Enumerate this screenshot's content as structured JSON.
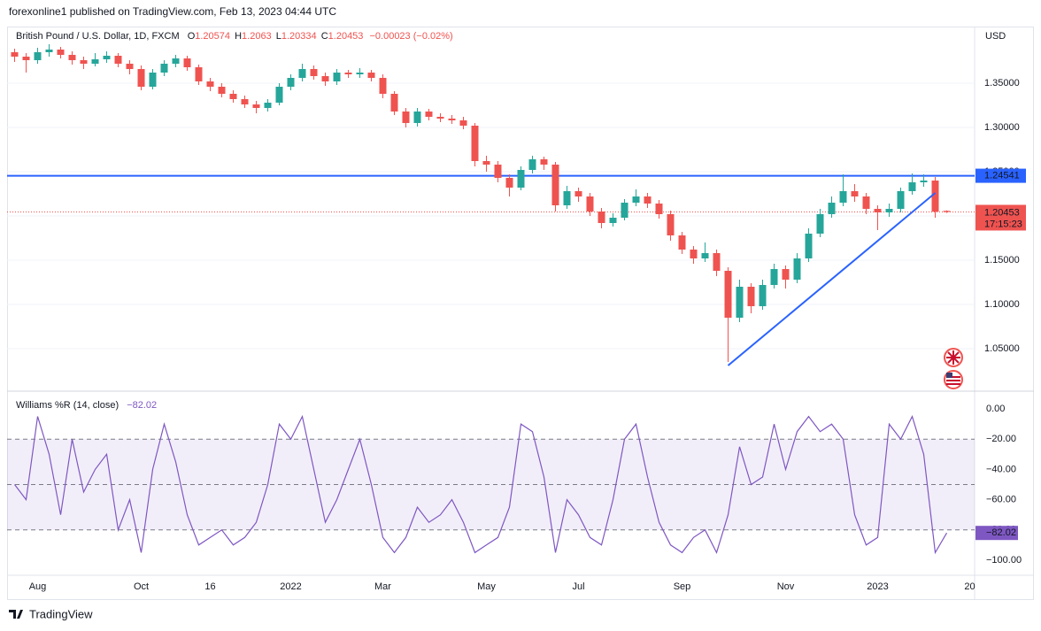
{
  "header": {
    "text": "forexonline1 published on TradingView.com, Feb 13, 2023 04:44 UTC"
  },
  "chart_data": [
    {
      "type": "candlestick",
      "title": "British Pound / U.S. Dollar, 1D, FXCM",
      "ohlc_labels": [
        "O",
        "H",
        "L",
        "C"
      ],
      "change": "−0.00023 (−0.02%)",
      "currency": "USD",
      "countdown": "17:15:23",
      "categories": [
        null,
        null,
        "Aug",
        null,
        null,
        null,
        null,
        null,
        null,
        null,
        null,
        "Oct",
        null,
        null,
        null,
        null,
        null,
        "16",
        null,
        null,
        null,
        null,
        null,
        null,
        "2022",
        null,
        null,
        null,
        null,
        null,
        null,
        null,
        "Mar",
        null,
        null,
        null,
        null,
        null,
        null,
        null,
        null,
        "May",
        null,
        null,
        null,
        null,
        null,
        null,
        null,
        "Jul",
        null,
        null,
        null,
        null,
        null,
        null,
        null,
        null,
        "Sep",
        null,
        null,
        null,
        null,
        null,
        null,
        null,
        null,
        "Nov",
        null,
        null,
        null,
        null,
        null,
        null,
        null,
        "2023",
        null,
        null,
        null,
        null,
        null,
        null,
        null,
        "20",
        null
      ],
      "open": [
        1.385,
        1.38,
        1.376,
        1.385,
        1.388,
        1.382,
        1.376,
        1.372,
        1.377,
        1.381,
        1.372,
        1.366,
        1.346,
        1.362,
        1.372,
        1.378,
        1.368,
        1.352,
        1.346,
        1.338,
        1.332,
        1.326,
        1.322,
        1.328,
        1.346,
        1.356,
        1.366,
        1.358,
        1.352,
        1.362,
        1.36,
        1.362,
        1.356,
        1.338,
        1.318,
        1.305,
        1.318,
        1.312,
        1.31,
        1.308,
        1.302,
        1.262,
        1.258,
        1.243,
        1.232,
        1.252,
        1.264,
        1.258,
        1.212,
        1.228,
        1.222,
        1.205,
        1.192,
        1.198,
        1.215,
        1.222,
        1.214,
        1.202,
        1.178,
        1.162,
        1.152,
        1.158,
        1.138,
        1.085,
        1.12,
        1.098,
        1.122,
        1.14,
        1.128,
        1.152,
        1.18,
        1.202,
        1.215,
        1.228,
        1.222,
        1.208,
        1.204,
        1.208,
        1.228,
        1.238,
        1.24,
        1.20574,
        null,
        null,
        null
      ],
      "high": [
        1.389,
        1.384,
        1.39,
        1.394,
        1.391,
        1.386,
        1.38,
        1.384,
        1.386,
        1.384,
        1.376,
        1.37,
        1.366,
        1.376,
        1.382,
        1.381,
        1.371,
        1.356,
        1.35,
        1.342,
        1.336,
        1.33,
        1.332,
        1.35,
        1.36,
        1.372,
        1.37,
        1.362,
        1.366,
        1.365,
        1.367,
        1.365,
        1.36,
        1.341,
        1.322,
        1.322,
        1.321,
        1.316,
        1.314,
        1.312,
        1.305,
        1.268,
        1.262,
        1.247,
        1.256,
        1.268,
        1.267,
        1.261,
        1.234,
        1.232,
        1.226,
        1.209,
        1.203,
        1.219,
        1.23,
        1.226,
        1.218,
        1.206,
        1.182,
        1.166,
        1.17,
        1.162,
        1.142,
        1.128,
        1.124,
        1.128,
        1.146,
        1.144,
        1.158,
        1.186,
        1.208,
        1.222,
        1.247,
        1.236,
        1.226,
        1.212,
        1.214,
        1.232,
        1.248,
        1.247,
        1.244,
        1.2063,
        null,
        null,
        null
      ],
      "low": [
        1.374,
        1.362,
        1.372,
        1.38,
        1.378,
        1.371,
        1.366,
        1.369,
        1.373,
        1.368,
        1.36,
        1.342,
        1.343,
        1.358,
        1.368,
        1.364,
        1.348,
        1.341,
        1.334,
        1.328,
        1.322,
        1.316,
        1.318,
        1.325,
        1.342,
        1.352,
        1.354,
        1.347,
        1.348,
        1.356,
        1.356,
        1.352,
        1.333,
        1.314,
        1.3,
        1.301,
        1.308,
        1.306,
        1.304,
        1.298,
        1.256,
        1.25,
        1.238,
        1.222,
        1.229,
        1.248,
        1.252,
        1.205,
        1.208,
        1.216,
        1.2,
        1.186,
        1.188,
        1.195,
        1.211,
        1.209,
        1.197,
        1.172,
        1.157,
        1.146,
        1.148,
        1.132,
        1.035,
        1.08,
        1.09,
        1.094,
        1.118,
        1.118,
        1.124,
        1.148,
        1.176,
        1.198,
        1.211,
        1.216,
        1.202,
        1.184,
        1.199,
        1.204,
        1.224,
        1.233,
        1.198,
        1.20334,
        null,
        null,
        null
      ],
      "close": [
        1.38,
        1.376,
        1.385,
        1.388,
        1.382,
        1.376,
        1.372,
        1.377,
        1.381,
        1.372,
        1.366,
        1.346,
        1.362,
        1.372,
        1.378,
        1.368,
        1.352,
        1.346,
        1.338,
        1.332,
        1.326,
        1.322,
        1.328,
        1.346,
        1.356,
        1.366,
        1.358,
        1.352,
        1.362,
        1.36,
        1.362,
        1.356,
        1.338,
        1.318,
        1.305,
        1.318,
        1.312,
        1.31,
        1.308,
        1.302,
        1.262,
        1.258,
        1.243,
        1.232,
        1.252,
        1.264,
        1.258,
        1.212,
        1.228,
        1.222,
        1.205,
        1.192,
        1.198,
        1.215,
        1.222,
        1.214,
        1.202,
        1.178,
        1.162,
        1.152,
        1.158,
        1.138,
        1.085,
        1.12,
        1.098,
        1.122,
        1.14,
        1.128,
        1.152,
        1.18,
        1.202,
        1.215,
        1.228,
        1.222,
        1.208,
        1.204,
        1.208,
        1.228,
        1.238,
        1.24,
        1.20476,
        1.20453,
        null,
        null,
        null
      ],
      "up_color": "#26a69a",
      "down_color": "#ef5350",
      "ylim": [
        1.004,
        1.414
      ],
      "yticks": [
        {
          "value": 1.05,
          "label": "1.05000"
        },
        {
          "value": 1.1,
          "label": "1.10000"
        },
        {
          "value": 1.15,
          "label": "1.15000"
        },
        {
          "value": 1.2,
          "label": "1.20000"
        },
        {
          "value": 1.25,
          "label": "1.25000"
        },
        {
          "value": 1.3,
          "label": "1.30000"
        },
        {
          "value": 1.35,
          "label": "1.35000"
        }
      ],
      "grid": true,
      "hline": {
        "value": 1.24541,
        "color": "#2962ff"
      },
      "trendline": {
        "x": [
          62,
          80
        ],
        "values": [
          1.031,
          1.226
        ],
        "color": "#2962ff"
      }
    },
    {
      "type": "line",
      "title": "Williams %R (14, close)",
      "value_label": "−82.02",
      "color": "#7e57c2",
      "values": [
        -50,
        -60,
        -5,
        -30,
        -70,
        -20,
        -55,
        -40,
        -30,
        -80,
        -60,
        -95,
        -40,
        -10,
        -35,
        -70,
        -90,
        -85,
        -80,
        -90,
        -85,
        -75,
        -50,
        -10,
        -20,
        -5,
        -40,
        -75,
        -60,
        -40,
        -20,
        -50,
        -85,
        -95,
        -85,
        -65,
        -75,
        -70,
        -60,
        -75,
        -95,
        -90,
        -85,
        -65,
        -10,
        -15,
        -45,
        -95,
        -60,
        -70,
        -85,
        -90,
        -60,
        -20,
        -10,
        -45,
        -75,
        -90,
        -95,
        -85,
        -80,
        -95,
        -70,
        -25,
        -50,
        -45,
        -10,
        -40,
        -15,
        -5,
        -15,
        -10,
        -20,
        -70,
        -90,
        -85,
        -10,
        -20,
        -5,
        -30,
        -95,
        -82.02,
        null,
        null,
        null
      ],
      "ylim": [
        -110,
        10
      ],
      "yticks": [
        {
          "value": 0,
          "label": "0.00"
        },
        {
          "value": -20,
          "label": "−20.00"
        },
        {
          "value": -40,
          "label": "−40.00"
        },
        {
          "value": -60,
          "label": "−60.00"
        },
        {
          "value": -80,
          "label": "−80.00"
        },
        {
          "value": -100,
          "label": "−100.00"
        }
      ],
      "levels": [
        -20,
        -50,
        -80
      ],
      "band": [
        -80,
        -20
      ]
    }
  ],
  "footer": {
    "brand": "TradingView"
  }
}
